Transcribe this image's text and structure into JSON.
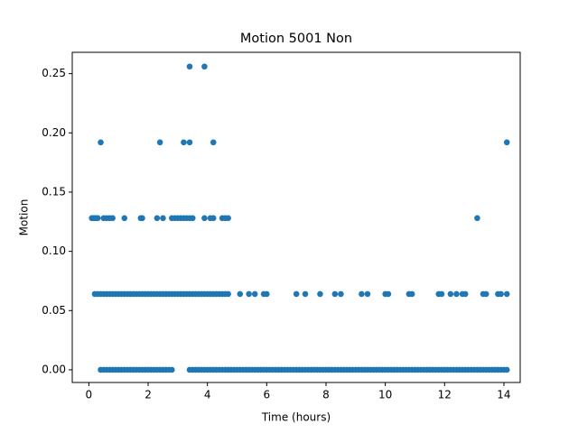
{
  "chart_data": {
    "type": "scatter",
    "title": "Motion 5001 Non",
    "x_label": "Time (hours)",
    "y_label": "Motion",
    "color": "#1f77b4",
    "x": [
      3.4,
      3.9,
      0.4,
      2.4,
      3.2,
      3.4,
      4.2,
      14.1,
      0.1,
      0.15,
      0.2,
      0.25,
      0.3,
      0.5,
      0.6,
      0.7,
      0.8,
      1.2,
      1.75,
      1.8,
      2.3,
      2.5,
      2.8,
      2.9,
      3.0,
      3.1,
      3.2,
      3.3,
      3.4,
      3.5,
      3.9,
      4.1,
      4.2,
      4.5,
      4.6,
      4.7,
      13.1,
      0.2,
      0.3,
      0.4,
      0.5,
      0.6,
      0.7,
      0.8,
      0.9,
      1.0,
      1.1,
      1.2,
      1.3,
      1.4,
      1.5,
      1.6,
      1.7,
      1.8,
      1.9,
      2.0,
      2.1,
      2.2,
      2.3,
      2.4,
      2.5,
      2.6,
      2.7,
      2.8,
      2.9,
      3.0,
      3.1,
      3.2,
      3.3,
      3.4,
      3.5,
      3.6,
      3.7,
      3.8,
      3.9,
      4.0,
      4.1,
      4.2,
      4.3,
      4.4,
      4.5,
      4.6,
      4.7,
      5.1,
      5.4,
      5.6,
      5.9,
      6.0,
      7.0,
      7.3,
      7.8,
      8.3,
      8.5,
      9.2,
      9.4,
      10.0,
      10.1,
      10.8,
      10.9,
      11.8,
      11.9,
      12.2,
      12.4,
      12.6,
      12.7,
      13.3,
      13.4,
      13.8,
      13.9,
      14.1,
      0.4,
      0.5,
      0.6,
      0.7,
      0.8,
      0.9,
      1.0,
      1.1,
      1.2,
      1.3,
      1.4,
      1.5,
      1.6,
      1.7,
      1.8,
      1.9,
      2.0,
      2.1,
      2.2,
      2.3,
      2.4,
      2.5,
      2.6,
      2.7,
      2.8,
      3.4,
      3.5,
      3.6,
      3.7,
      3.8,
      3.9,
      4.0,
      4.1,
      4.2,
      4.3,
      4.4,
      4.5,
      4.6,
      4.7,
      4.8,
      4.9,
      5.0,
      5.1,
      5.2,
      5.3,
      5.4,
      5.5,
      5.6,
      5.7,
      5.8,
      5.9,
      6.0,
      6.1,
      6.2,
      6.3,
      6.4,
      6.5,
      6.6,
      6.7,
      6.8,
      6.9,
      7.0,
      7.1,
      7.2,
      7.3,
      7.4,
      7.5,
      7.6,
      7.7,
      7.8,
      7.9,
      8.0,
      8.1,
      8.2,
      8.3,
      8.4,
      8.5,
      8.6,
      8.7,
      8.8,
      8.9,
      9.0,
      9.1,
      9.2,
      9.3,
      9.4,
      9.5,
      9.6,
      9.7,
      9.8,
      9.9,
      10.0,
      10.1,
      10.2,
      10.3,
      10.4,
      10.5,
      10.6,
      10.7,
      10.8,
      10.9,
      11.0,
      11.1,
      11.2,
      11.3,
      11.4,
      11.5,
      11.6,
      11.7,
      11.8,
      11.9,
      12.0,
      12.1,
      12.2,
      12.3,
      12.4,
      12.5,
      12.6,
      12.7,
      12.8,
      12.9,
      13.0,
      13.1,
      13.2,
      13.3,
      13.4,
      13.5,
      13.6,
      13.7,
      13.8,
      13.9,
      14.0,
      14.1
    ],
    "y": [
      0.256,
      0.256,
      0.192,
      0.192,
      0.192,
      0.192,
      0.192,
      0.192,
      0.128,
      0.128,
      0.128,
      0.128,
      0.128,
      0.128,
      0.128,
      0.128,
      0.128,
      0.128,
      0.128,
      0.128,
      0.128,
      0.128,
      0.128,
      0.128,
      0.128,
      0.128,
      0.128,
      0.128,
      0.128,
      0.128,
      0.128,
      0.128,
      0.128,
      0.128,
      0.128,
      0.128,
      0.128,
      0.064,
      0.064,
      0.064,
      0.064,
      0.064,
      0.064,
      0.064,
      0.064,
      0.064,
      0.064,
      0.064,
      0.064,
      0.064,
      0.064,
      0.064,
      0.064,
      0.064,
      0.064,
      0.064,
      0.064,
      0.064,
      0.064,
      0.064,
      0.064,
      0.064,
      0.064,
      0.064,
      0.064,
      0.064,
      0.064,
      0.064,
      0.064,
      0.064,
      0.064,
      0.064,
      0.064,
      0.064,
      0.064,
      0.064,
      0.064,
      0.064,
      0.064,
      0.064,
      0.064,
      0.064,
      0.064,
      0.064,
      0.064,
      0.064,
      0.064,
      0.064,
      0.064,
      0.064,
      0.064,
      0.064,
      0.064,
      0.064,
      0.064,
      0.064,
      0.064,
      0.064,
      0.064,
      0.064,
      0.064,
      0.064,
      0.064,
      0.064,
      0.064,
      0.064,
      0.064,
      0.064,
      0.064,
      0.064,
      0,
      0,
      0,
      0,
      0,
      0,
      0,
      0,
      0,
      0,
      0,
      0,
      0,
      0,
      0,
      0,
      0,
      0,
      0,
      0,
      0,
      0,
      0,
      0,
      0,
      0,
      0,
      0,
      0,
      0,
      0,
      0,
      0,
      0,
      0,
      0,
      0,
      0,
      0,
      0,
      0,
      0,
      0,
      0,
      0,
      0,
      0,
      0,
      0,
      0,
      0,
      0,
      0,
      0,
      0,
      0,
      0,
      0,
      0,
      0,
      0,
      0,
      0,
      0,
      0,
      0,
      0,
      0,
      0,
      0,
      0,
      0,
      0,
      0,
      0,
      0,
      0,
      0,
      0,
      0,
      0,
      0,
      0,
      0,
      0,
      0,
      0,
      0,
      0,
      0,
      0,
      0,
      0,
      0,
      0,
      0,
      0,
      0,
      0,
      0,
      0,
      0,
      0,
      0,
      0,
      0,
      0,
      0,
      0,
      0,
      0,
      0,
      0,
      0,
      0,
      0,
      0,
      0,
      0,
      0,
      0,
      0,
      0,
      0,
      0,
      0,
      0,
      0,
      0,
      0,
      0,
      0,
      0
    ],
    "xlim": [
      -0.56,
      14.55
    ],
    "xticks": [
      0,
      2,
      4,
      6,
      8,
      10,
      12,
      14
    ],
    "ylim": [
      -0.0107,
      0.268
    ],
    "yticks": [
      {
        "value": 0,
        "label": "0.00"
      },
      {
        "value": 0.05,
        "label": "0.05"
      },
      {
        "value": 0.1,
        "label": "0.10"
      },
      {
        "value": 0.15,
        "label": "0.15"
      },
      {
        "value": 0.2,
        "label": "0.20"
      },
      {
        "value": 0.25,
        "label": "0.25"
      }
    ],
    "grid": false
  }
}
